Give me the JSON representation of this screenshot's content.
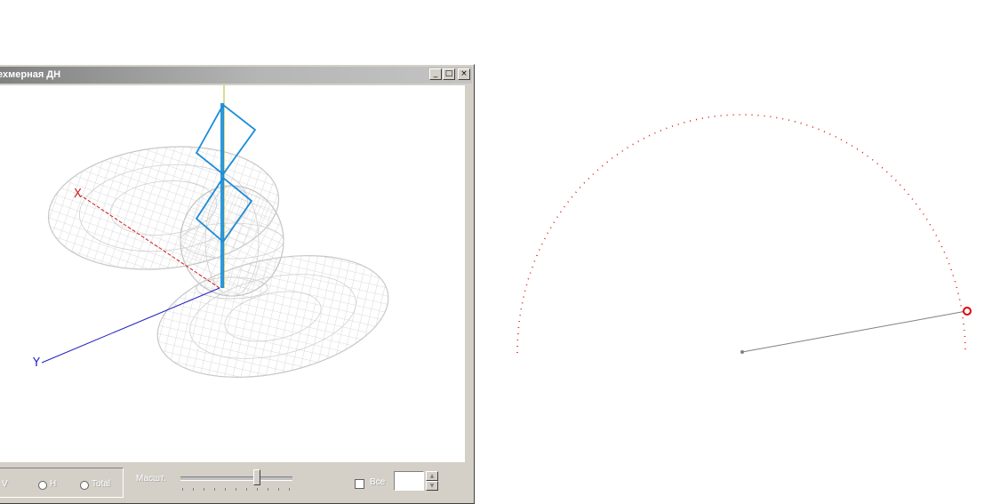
{
  "window": {
    "title": "ехмерная ДН",
    "minimize_icon": "minimize-icon",
    "maximize_icon": "maximize-icon",
    "close_icon": "close-icon"
  },
  "viewport3d": {
    "axes": {
      "x_label": "X",
      "y_label": "Y"
    },
    "colors": {
      "mesh": "#c8c8c8",
      "antenna": "#1a8cd8",
      "x_axis": "#cc2020",
      "y_axis": "#2020c0",
      "z_axis": "#a0c020"
    }
  },
  "controls": {
    "component_v_label": "V",
    "component_h_label": "H",
    "component_total_label": "Total",
    "scale_label": "Масшт.",
    "scale_level_fraction": 0.72,
    "all_label": "Все",
    "spin_value": ""
  },
  "polar_view": {
    "colors": {
      "arc": "#e02020",
      "marker": "#e00000",
      "line": "#808080"
    }
  }
}
